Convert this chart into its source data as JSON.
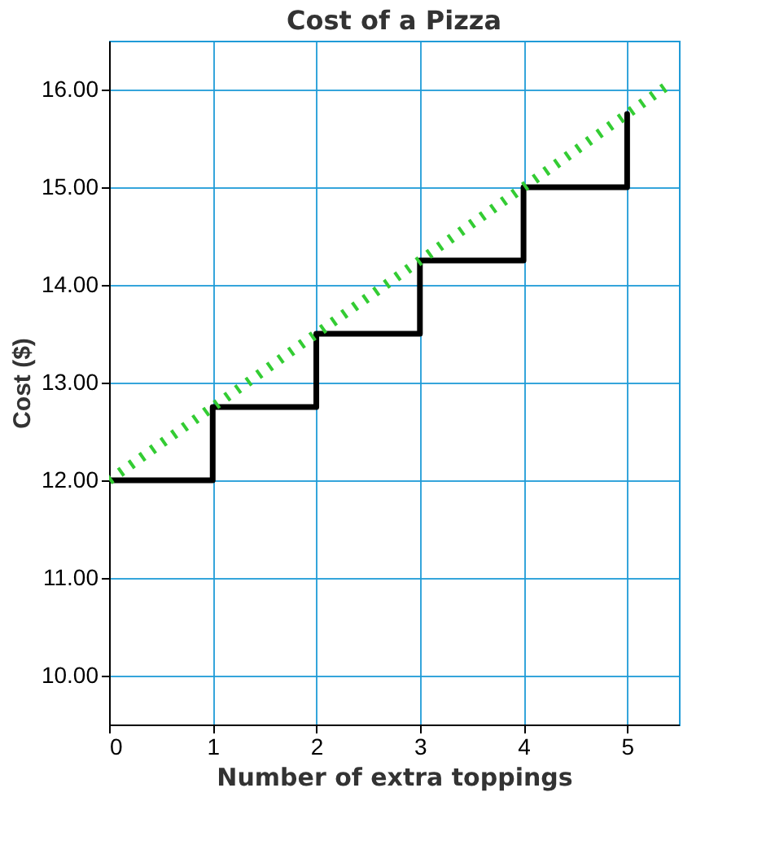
{
  "chart_data": {
    "type": "step",
    "title": "Cost of a Pizza",
    "xlabel": "Number of extra toppings",
    "ylabel": "Cost ($)",
    "xlim": [
      0,
      5.5
    ],
    "ylim": [
      9.5,
      16.5
    ],
    "xticks": [
      0,
      1,
      2,
      3,
      4,
      5
    ],
    "yticks": [
      {
        "value": 10,
        "label": "10.00"
      },
      {
        "value": 11,
        "label": "11.00"
      },
      {
        "value": 12,
        "label": "12.00"
      },
      {
        "value": 13,
        "label": "13.00"
      },
      {
        "value": 14,
        "label": "14.00"
      },
      {
        "value": 15,
        "label": "15.00"
      },
      {
        "value": 16,
        "label": "16.00"
      }
    ],
    "grid": true,
    "series": [
      {
        "color": "#000000",
        "x": [
          0,
          1,
          2,
          3,
          4,
          5
        ],
        "values": [
          12,
          12.75,
          13.5,
          14.25,
          15,
          15.75
        ]
      },
      {
        "type": "line",
        "color": "#33cc33",
        "line_style": "dotted",
        "x": [
          0,
          5.4
        ],
        "values": [
          12,
          16.05
        ]
      }
    ]
  }
}
